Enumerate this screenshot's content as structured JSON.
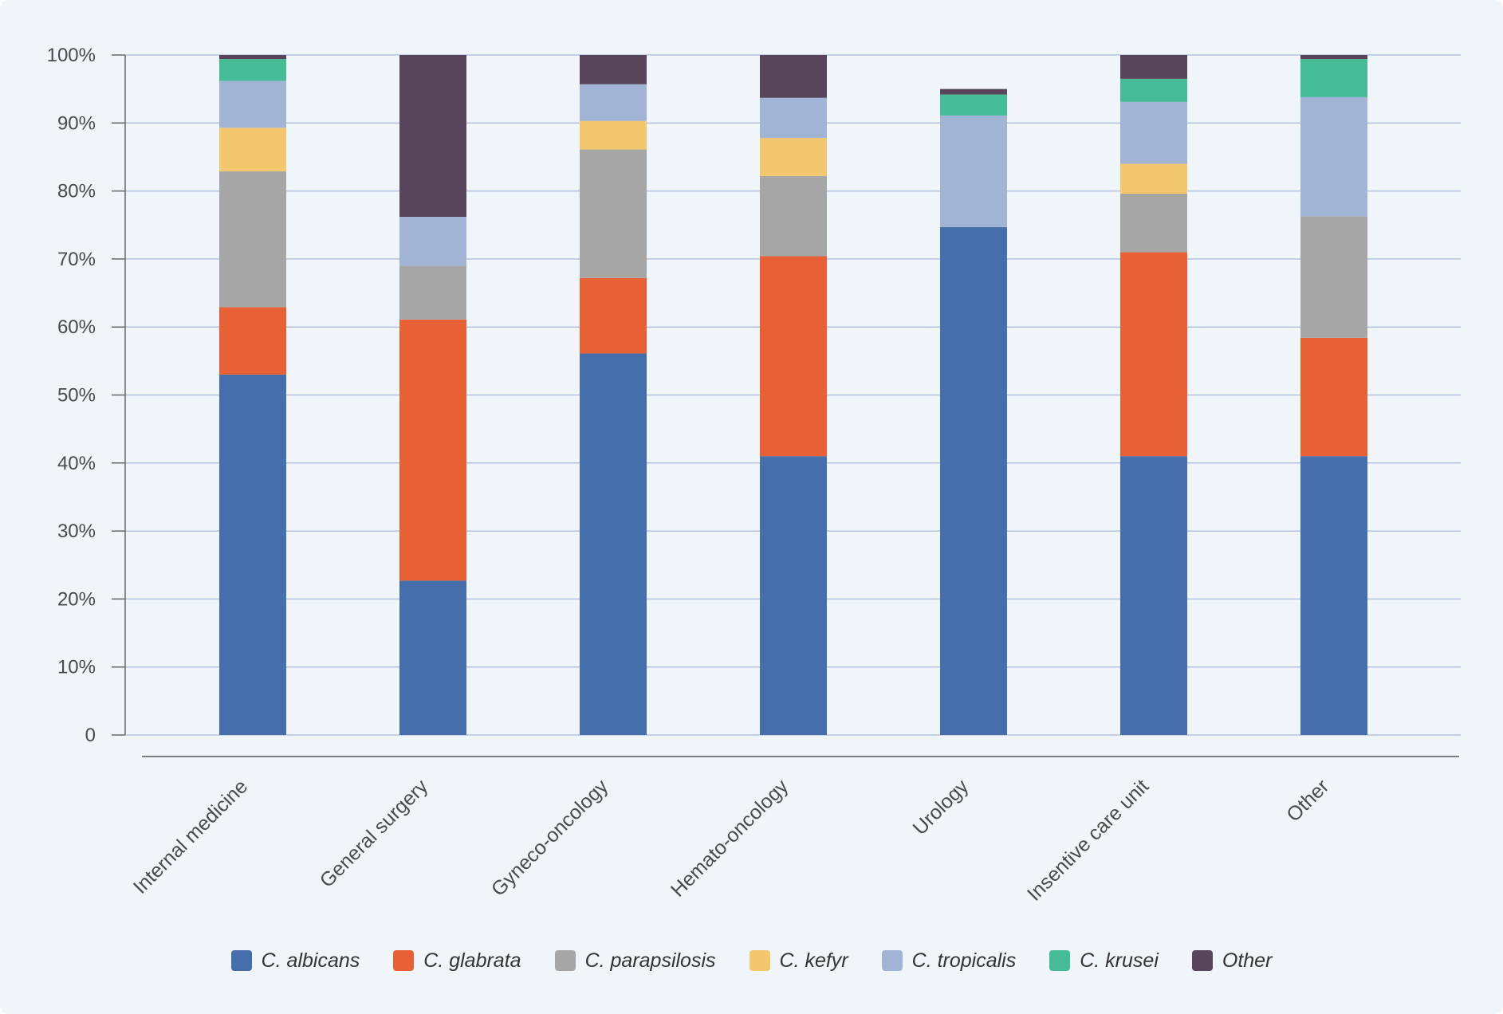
{
  "chart_data": {
    "type": "bar",
    "stacked": true,
    "title": "",
    "xlabel": "",
    "ylabel": "",
    "ylim": [
      0,
      100
    ],
    "yticks": [
      "0",
      "10%",
      "20%",
      "30%",
      "40%",
      "50%",
      "60%",
      "70%",
      "80%",
      "90%",
      "100%"
    ],
    "categories": [
      "Internal medicine",
      "General surgery",
      "Gyneco-oncology",
      "Hemato-oncology",
      "Urology",
      "Insentive care unit",
      "Other"
    ],
    "series": [
      {
        "name": "C. albicans",
        "color": "#466eab",
        "values": [
          53,
          22.7,
          56.1,
          41,
          74.7,
          41,
          41
        ]
      },
      {
        "name": "C. glabrata",
        "color": "#e86036",
        "values": [
          9.9,
          38.4,
          11.1,
          29.4,
          0,
          30,
          17.4
        ]
      },
      {
        "name": "C. parapsilosis",
        "color": "#a6a6a6",
        "values": [
          20,
          7.9,
          18.9,
          11.8,
          0,
          8.6,
          17.9
        ]
      },
      {
        "name": "C. kefyr",
        "color": "#f3c76e",
        "values": [
          6.4,
          0,
          4.2,
          5.6,
          0,
          4.4,
          0
        ]
      },
      {
        "name": "C. tropicalis",
        "color": "#a2b4d6",
        "values": [
          6.9,
          7.2,
          5.4,
          5.9,
          16.4,
          9.1,
          17.5
        ]
      },
      {
        "name": "C. krusei",
        "color": "#45bc95",
        "values": [
          3.2,
          0,
          0,
          0,
          3.1,
          3.4,
          5.6
        ]
      },
      {
        "name": "Other",
        "color": "#58445b",
        "values": [
          0.6,
          23.8,
          4.3,
          6.3,
          0.8,
          3.5,
          0.6
        ]
      }
    ],
    "legend_position": "bottom",
    "grid": true
  }
}
